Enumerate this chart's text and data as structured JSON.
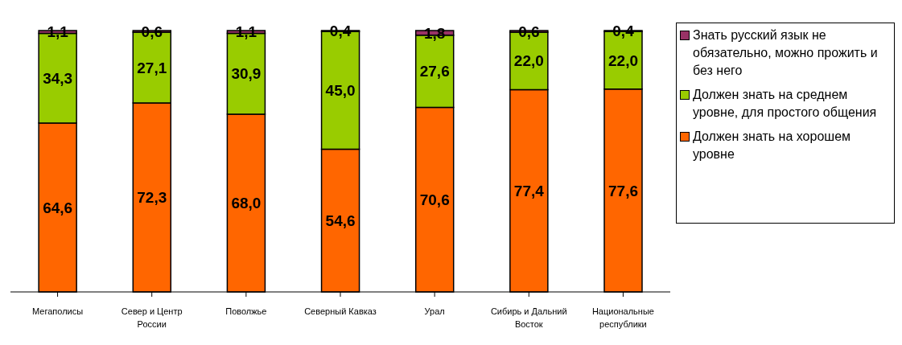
{
  "chart_data": {
    "type": "bar",
    "stacked": true,
    "categories": [
      "Мегаполисы",
      "Север и Центр России",
      "Поволжье",
      "Северный Кавказ",
      "Урал",
      "Сибирь и Дальний Восток",
      "Национальные республики"
    ],
    "series": [
      {
        "name": "Должен знать на хорошем уровне",
        "color": "#ff6600",
        "values": [
          64.6,
          72.3,
          68.0,
          54.6,
          70.6,
          77.4,
          77.6
        ],
        "value_labels": [
          "64,6",
          "72,3",
          "68,0",
          "54,6",
          "70,6",
          "77,4",
          "77,6"
        ]
      },
      {
        "name": "Должен знать на среднем уровне, для простого общения",
        "color": "#99cc00",
        "values": [
          34.3,
          27.1,
          30.9,
          45.0,
          27.6,
          22.0,
          22.0
        ],
        "value_labels": [
          "34,3",
          "27,1",
          "30,9",
          "45,0",
          "27,6",
          "22,0",
          "22,0"
        ]
      },
      {
        "name": "Знать русский язык не обязательно, можно прожить и без него",
        "color": "#993366",
        "values": [
          1.1,
          0.6,
          1.1,
          0.4,
          1.8,
          0.6,
          0.4
        ],
        "value_labels": [
          "1,1",
          "0,6",
          "1,1",
          "0,4",
          "1,8",
          "0,6",
          "0,4"
        ]
      }
    ],
    "legend": "right"
  }
}
